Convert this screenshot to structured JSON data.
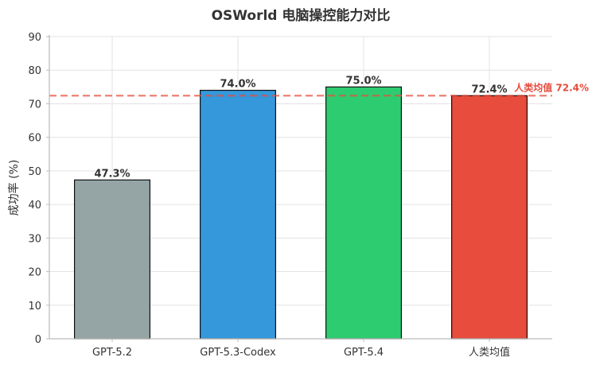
{
  "chart_data": {
    "type": "bar",
    "title": "OSWorld 电脑操控能力对比",
    "xlabel": "",
    "ylabel": "成功率 (%)",
    "ylim": [
      0,
      90
    ],
    "yticks": [
      0,
      10,
      20,
      30,
      40,
      50,
      60,
      70,
      80,
      90
    ],
    "categories": [
      "GPT-5.2",
      "GPT-5.3-Codex",
      "GPT-5.4",
      "人类均值"
    ],
    "values": [
      47.3,
      74.0,
      75.0,
      72.4
    ],
    "data_labels": [
      "47.3%",
      "74.0%",
      "75.0%",
      "72.4%"
    ],
    "bar_colors": [
      "#95a5a6",
      "#3498db",
      "#2ecc71",
      "#e74c3c"
    ],
    "grid": true,
    "reference_line": {
      "value": 72.4,
      "label": "人类均值 72.4%",
      "color": "#e74c3c",
      "style": "dashed"
    }
  }
}
